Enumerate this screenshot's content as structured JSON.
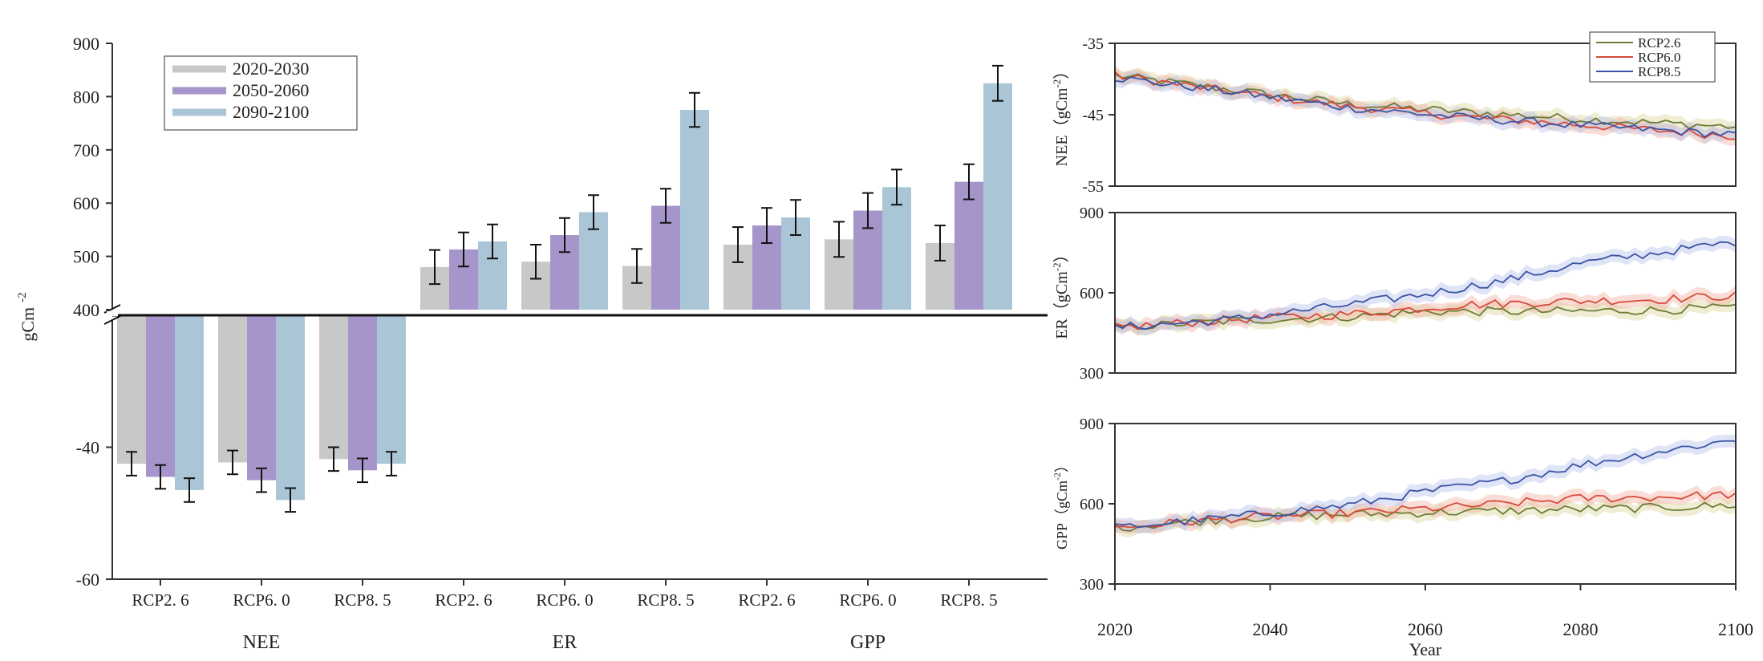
{
  "chart_data": [
    {
      "type": "bar",
      "panel": "left",
      "ylabel": "gCm",
      "ylabel_superscript": "-2",
      "legend": [
        "2020-2030",
        "2050-2060",
        "2090-2100"
      ],
      "colors": [
        "#c8c8c8",
        "#a695ca",
        "#aac6d6"
      ],
      "upper_axis": {
        "ylim": [
          400,
          900
        ],
        "ticks": [
          "400",
          "500",
          "600",
          "700",
          "800",
          "900"
        ]
      },
      "lower_axis": {
        "ylim": [
          -60,
          -20
        ],
        "ticks": [
          "-40",
          "-60"
        ]
      },
      "categories": [
        "RCP2. 6",
        "RCP6. 0",
        "RCP8. 5",
        "RCP2. 6",
        "RCP6. 0",
        "RCP8. 5",
        "RCP2. 6",
        "RCP6. 0",
        "RCP8. 5"
      ],
      "groups": [
        {
          "label": "NEE",
          "span": [
            0,
            2
          ]
        },
        {
          "label": "ER",
          "span": [
            3,
            5
          ]
        },
        {
          "label": "GPP",
          "span": [
            6,
            8
          ]
        }
      ],
      "series": [
        {
          "name": "2020-2030",
          "values": [
            -42.5,
            -42.3,
            -41.8,
            480,
            490,
            482,
            522,
            532,
            525
          ],
          "errors": [
            1.8,
            1.8,
            1.8,
            32,
            32,
            32,
            33,
            33,
            33
          ]
        },
        {
          "name": "2050-2060",
          "values": [
            -44.5,
            -45.0,
            -43.5,
            513,
            540,
            595,
            558,
            586,
            640
          ],
          "errors": [
            1.8,
            1.8,
            1.8,
            32,
            32,
            32,
            33,
            33,
            33
          ]
        },
        {
          "name": "2090-2100",
          "values": [
            -46.5,
            -48.0,
            -42.5,
            528,
            583,
            775,
            573,
            630,
            825
          ],
          "errors": [
            1.8,
            1.8,
            1.8,
            32,
            32,
            32,
            33,
            33,
            33
          ]
        }
      ]
    },
    {
      "type": "line",
      "panel": "right",
      "xlabel": "Year",
      "xlim": [
        2020,
        2100
      ],
      "xticks": [
        "2020",
        "2040",
        "2060",
        "2080",
        "2100"
      ],
      "legend": [
        "RCP2.6",
        "RCP6.0",
        "RCP8.5"
      ],
      "colors": [
        "#6e7d35",
        "#d84a3c",
        "#3b55a6"
      ],
      "band_colors": [
        "#dcd8a0",
        "#f2b4a4",
        "#b8c4ea"
      ],
      "subplots": [
        {
          "name": "NEE",
          "ylabel": "NEE（gCm",
          "ylabel_sup": "-2",
          "ylabel_end": "）",
          "ylim": [
            -55,
            -35
          ],
          "yticks": [
            "-35",
            "-45",
            "-55"
          ],
          "series": [
            {
              "name": "RCP2.6",
              "keypoints": [
                [
                  2020,
                  -39.5
                ],
                [
                  2035,
                  -41.5
                ],
                [
                  2050,
                  -43.5
                ],
                [
                  2065,
                  -44.6
                ],
                [
                  2080,
                  -45.6
                ],
                [
                  2100,
                  -46.7
                ]
              ]
            },
            {
              "name": "RCP6.0",
              "keypoints": [
                [
                  2020,
                  -39.5
                ],
                [
                  2035,
                  -41.8
                ],
                [
                  2050,
                  -43.8
                ],
                [
                  2065,
                  -45.3
                ],
                [
                  2080,
                  -46.4
                ],
                [
                  2100,
                  -48.0
                ]
              ]
            },
            {
              "name": "RCP8.5",
              "keypoints": [
                [
                  2020,
                  -39.8
                ],
                [
                  2035,
                  -41.8
                ],
                [
                  2050,
                  -44.0
                ],
                [
                  2065,
                  -45.4
                ],
                [
                  2080,
                  -46.5
                ],
                [
                  2100,
                  -47.8
                ]
              ]
            }
          ]
        },
        {
          "name": "ER",
          "ylabel": "ER（gCm",
          "ylabel_sup": "-2",
          "ylabel_end": "）",
          "ylim": [
            300,
            900
          ],
          "yticks": [
            "900",
            "600",
            "300"
          ],
          "series": [
            {
              "name": "RCP2.6",
              "keypoints": [
                [
                  2020,
                  470
                ],
                [
                  2035,
                  495
                ],
                [
                  2050,
                  510
                ],
                [
                  2060,
                  530
                ],
                [
                  2075,
                  530
                ],
                [
                  2090,
                  535
                ],
                [
                  2100,
                  545
                ]
              ]
            },
            {
              "name": "RCP6.0",
              "keypoints": [
                [
                  2020,
                  470
                ],
                [
                  2035,
                  500
                ],
                [
                  2050,
                  520
                ],
                [
                  2065,
                  555
                ],
                [
                  2080,
                  570
                ],
                [
                  2090,
                  575
                ],
                [
                  2100,
                  590
                ]
              ]
            },
            {
              "name": "RCP8.5",
              "keypoints": [
                [
                  2020,
                  470
                ],
                [
                  2035,
                  500
                ],
                [
                  2050,
                  555
                ],
                [
                  2060,
                  595
                ],
                [
                  2070,
                  645
                ],
                [
                  2080,
                  710
                ],
                [
                  2090,
                  750
                ],
                [
                  2100,
                  790
                ]
              ]
            }
          ]
        },
        {
          "name": "GPP",
          "ylabel": "GPP（gCm",
          "ylabel_sup": "-2",
          "ylabel_end": "）",
          "ylim": [
            300,
            900
          ],
          "yticks": [
            "900",
            "600",
            "300"
          ],
          "series": [
            {
              "name": "RCP2.6",
              "keypoints": [
                [
                  2020,
                  510
                ],
                [
                  2035,
                  545
                ],
                [
                  2050,
                  560
                ],
                [
                  2065,
                  570
                ],
                [
                  2080,
                  580
                ],
                [
                  2090,
                  585
                ],
                [
                  2100,
                  595
                ]
              ]
            },
            {
              "name": "RCP6.0",
              "keypoints": [
                [
                  2020,
                  510
                ],
                [
                  2035,
                  545
                ],
                [
                  2050,
                  565
                ],
                [
                  2065,
                  590
                ],
                [
                  2080,
                  620
                ],
                [
                  2090,
                  625
                ],
                [
                  2100,
                  635
                ]
              ]
            },
            {
              "name": "RCP8.5",
              "keypoints": [
                [
                  2020,
                  510
                ],
                [
                  2035,
                  550
                ],
                [
                  2050,
                  595
                ],
                [
                  2060,
                  645
                ],
                [
                  2070,
                  685
                ],
                [
                  2080,
                  745
                ],
                [
                  2090,
                  795
                ],
                [
                  2100,
                  840
                ]
              ]
            }
          ]
        }
      ]
    }
  ]
}
